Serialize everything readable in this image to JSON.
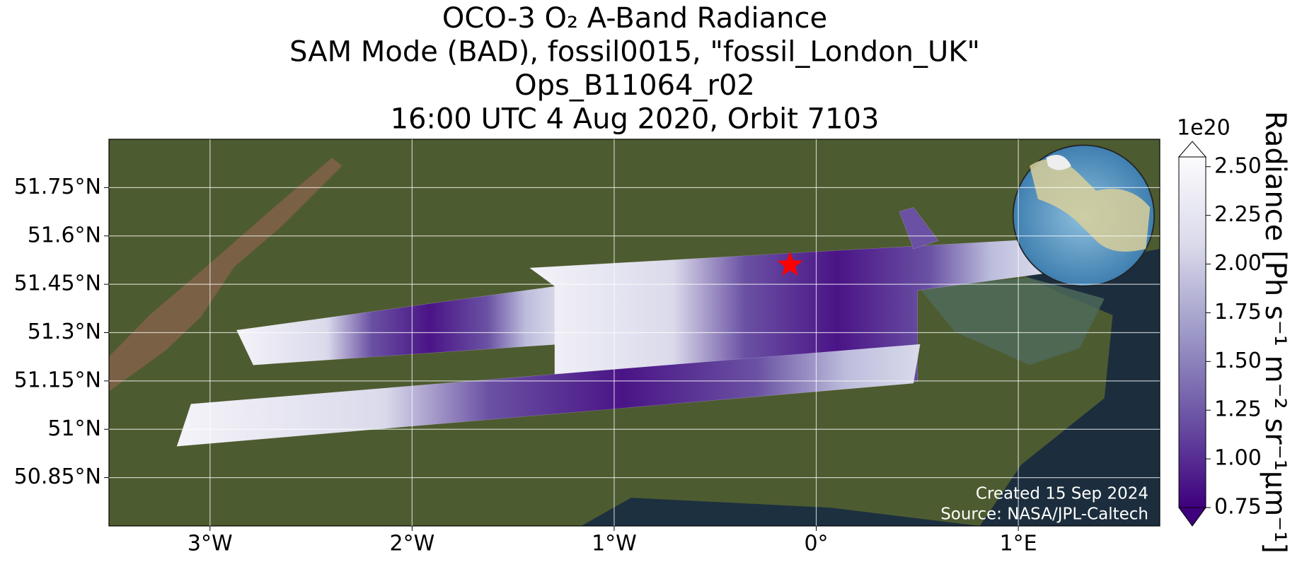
{
  "title": [
    "OCO-3 O₂ A-Band Radiance",
    "SAM Mode (BAD), fossil0015, \"fossil_London_UK\"",
    "Ops_B11064_r02",
    "16:00 UTC 4 Aug 2020, Orbit 7103"
  ],
  "map": {
    "xlim": [
      -3.5,
      1.7
    ],
    "ylim": [
      50.7,
      51.9
    ],
    "xticks": [
      {
        "value": -3,
        "label": "3°W"
      },
      {
        "value": -2,
        "label": "2°W"
      },
      {
        "value": -1,
        "label": "1°W"
      },
      {
        "value": 0,
        "label": "0°"
      },
      {
        "value": 1,
        "label": "1°E"
      }
    ],
    "yticks": [
      {
        "value": 50.85,
        "label": "50.85°N"
      },
      {
        "value": 51,
        "label": "51°N"
      },
      {
        "value": 51.15,
        "label": "51.15°N"
      },
      {
        "value": 51.3,
        "label": "51.3°N"
      },
      {
        "value": 51.45,
        "label": "51.45°N"
      },
      {
        "value": 51.6,
        "label": "51.6°N"
      },
      {
        "value": 51.75,
        "label": "51.75°N"
      }
    ],
    "grid": true,
    "target": {
      "lon": -0.13,
      "lat": 51.51,
      "color": "#ff0000"
    }
  },
  "colorbar": {
    "label": "Radiance [Ph s⁻¹ m⁻² sr⁻¹μm⁻¹]",
    "multiplier": "1e20",
    "lim": [
      0.75,
      2.55
    ],
    "ticks": [
      0.75,
      {
        "value": 1,
        "label": "1.00"
      },
      1.25,
      {
        "value": 1.5,
        "label": "1.50"
      },
      1.75,
      {
        "value": 2,
        "label": "2.00"
      },
      2.25,
      {
        "value": 2.5,
        "label": "2.50"
      }
    ],
    "colors": [
      "#3f007d",
      "#6a51a3",
      "#9e9ac8",
      "#dadaeb",
      "#fcfbfd"
    ]
  },
  "annotations": [
    "Created 15 Sep 2024",
    "Source: NASA/JPL-Caltech"
  ]
}
